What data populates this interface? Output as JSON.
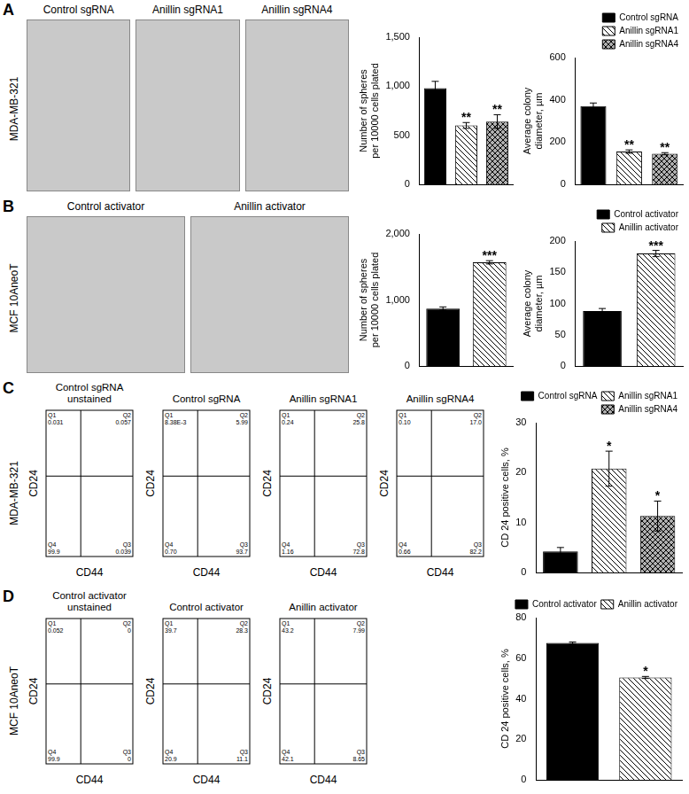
{
  "chart_data": [
    {
      "type": "bar",
      "categories": [
        "Control sgRNA",
        "Anillin sgRNA1",
        "Anillin sgRNA4"
      ],
      "values": [
        980,
        600,
        640
      ],
      "errors": [
        70,
        30,
        70
      ],
      "annotations": [
        null,
        "**",
        "**"
      ],
      "colors": [
        "#000000",
        "#ffffff",
        "#b0b0b0"
      ],
      "y_label": [
        "Number of spheres",
        "per 10000 cells plated"
      ],
      "ylim": [
        0,
        1500
      ],
      "yticks": [
        0,
        500,
        1000,
        1500
      ],
      "grid": false,
      "tick_labels": "y"
    },
    {
      "type": "bar",
      "categories": [
        "Control sgRNA",
        "Anillin sgRNA1",
        "Anillin sgRNA4"
      ],
      "values": [
        370,
        155,
        145
      ],
      "errors": [
        15,
        8,
        5
      ],
      "annotations": [
        null,
        "**",
        "**"
      ],
      "colors": [
        "#000000",
        "#ffffff",
        "#b0b0b0"
      ],
      "y_label": [
        "Average colony",
        "diameter, µm"
      ],
      "ylim": [
        0,
        600
      ],
      "yticks": [
        0,
        200,
        400,
        600
      ],
      "grid": false,
      "tick_labels": "y",
      "legend": "top right"
    },
    {
      "type": "bar",
      "categories": [
        "Control activator",
        "Anillin activator"
      ],
      "values": [
        870,
        1570
      ],
      "errors": [
        25,
        25
      ],
      "annotations": [
        null,
        "***"
      ],
      "colors": [
        "#000000",
        "#ffffff"
      ],
      "y_label": [
        "Number of spheres",
        "per 10000 cells plated"
      ],
      "ylim": [
        0,
        2000
      ],
      "yticks": [
        0,
        1000,
        2000
      ],
      "grid": false,
      "tick_labels": "y"
    },
    {
      "type": "bar",
      "categories": [
        "Control activator",
        "Anillin activator"
      ],
      "values": [
        88,
        180
      ],
      "errors": [
        4,
        5
      ],
      "annotations": [
        null,
        "***"
      ],
      "colors": [
        "#000000",
        "#ffffff"
      ],
      "y_label": [
        "Average colony",
        "diameter, µm"
      ],
      "ylim": [
        0,
        200
      ],
      "yticks": [
        0,
        50,
        100,
        150,
        200
      ],
      "grid": false,
      "tick_labels": "y",
      "legend": "top right"
    },
    {
      "type": "bar",
      "categories": [
        "Control sgRNA",
        "Anillin sgRNA1",
        "Anillin sgRNA4"
      ],
      "values": [
        4.2,
        20.8,
        11.3
      ],
      "errors": [
        0.8,
        3.5,
        3
      ],
      "annotations": [
        null,
        "*",
        "*"
      ],
      "colors": [
        "#000000",
        "#ffffff",
        "#b0b0b0"
      ],
      "y_label": [
        "CD 24 positive cells, %"
      ],
      "ylim": [
        0,
        30
      ],
      "yticks": [
        0,
        10,
        20,
        30
      ],
      "grid": false,
      "tick_labels": "y",
      "legend": "top right"
    },
    {
      "type": "bar",
      "categories": [
        "Control activator",
        "Anillin activator"
      ],
      "values": [
        67.5,
        50.5
      ],
      "errors": [
        0.5,
        0.5
      ],
      "annotations": [
        null,
        "*"
      ],
      "colors": [
        "#000000",
        "#ffffff"
      ],
      "y_label": [
        "CD 24 positive cells, %"
      ],
      "ylim": [
        0,
        80
      ],
      "yticks": [
        0,
        20,
        40,
        60,
        80
      ],
      "grid": false,
      "tick_labels": "y",
      "legend": "top right"
    }
  ],
  "figure": {
    "panels": [
      {
        "label": "A",
        "cell_line": "MDA-MB-321",
        "images": [
          "Control sgRNA",
          "Anillin sgRNA1",
          "Anillin sgRNA4"
        ]
      },
      {
        "label": "B",
        "cell_line": "MCF 10AneoT",
        "images": [
          "Control activator",
          "Anillin activator"
        ]
      },
      {
        "label": "C",
        "cell_line": "MDA-MB-321",
        "flow_plots": [
          {
            "title": [
              "Control sgRNA",
              "unstained"
            ],
            "x_label": "CD44",
            "y_label": "CD24",
            "quadrants": [
              {
                "name": "Q1",
                "value": "0.031"
              },
              {
                "name": "Q2",
                "value": "0.057"
              },
              {
                "name": "Q3",
                "value": "0.039"
              },
              {
                "name": "Q4",
                "value": "99.9"
              }
            ]
          },
          {
            "title": [
              "Control sgRNA"
            ],
            "x_label": "CD44",
            "y_label": "CD24",
            "quadrants": [
              {
                "name": "Q1",
                "value": "8.38E-3"
              },
              {
                "name": "Q2",
                "value": "5.99"
              },
              {
                "name": "Q3",
                "value": "93.7"
              },
              {
                "name": "Q4",
                "value": "0.70"
              }
            ]
          },
          {
            "title": [
              "Anillin sgRNA1"
            ],
            "x_label": "CD44",
            "y_label": "CD24",
            "quadrants": [
              {
                "name": "Q1",
                "value": "0.24"
              },
              {
                "name": "Q2",
                "value": "25.8"
              },
              {
                "name": "Q3",
                "value": "72.8"
              },
              {
                "name": "Q4",
                "value": "1.16"
              }
            ]
          },
          {
            "title": [
              "Anillin sgRNA4"
            ],
            "x_label": "CD44",
            "y_label": "CD24",
            "quadrants": [
              {
                "name": "Q1",
                "value": "0.10"
              },
              {
                "name": "Q2",
                "value": "17.0"
              },
              {
                "name": "Q3",
                "value": "82.2"
              },
              {
                "name": "Q4",
                "value": "0.66"
              }
            ]
          }
        ]
      },
      {
        "label": "D",
        "cell_line": "MCF 10AneoT",
        "flow_plots": [
          {
            "title": [
              "Control activator",
              "unstained"
            ],
            "x_label": "CD44",
            "y_label": "CD24",
            "quadrants": [
              {
                "name": "Q1",
                "value": "0.052"
              },
              {
                "name": "Q2",
                "value": "0"
              },
              {
                "name": "Q3",
                "value": "0"
              },
              {
                "name": "Q4",
                "value": "99.9"
              }
            ]
          },
          {
            "title": [
              "Control activator"
            ],
            "x_label": "CD44",
            "y_label": "CD24",
            "quadrants": [
              {
                "name": "Q1",
                "value": "39.7"
              },
              {
                "name": "Q2",
                "value": "28.3"
              },
              {
                "name": "Q3",
                "value": "11.1"
              },
              {
                "name": "Q4",
                "value": "20.9"
              }
            ]
          },
          {
            "title": [
              "Anillin activator"
            ],
            "x_label": "CD44",
            "y_label": "CD24",
            "quadrants": [
              {
                "name": "Q1",
                "value": "43.2"
              },
              {
                "name": "Q2",
                "value": "7.99"
              },
              {
                "name": "Q3",
                "value": "8.65"
              },
              {
                "name": "Q4",
                "value": "42.1"
              }
            ]
          }
        ]
      }
    ]
  }
}
